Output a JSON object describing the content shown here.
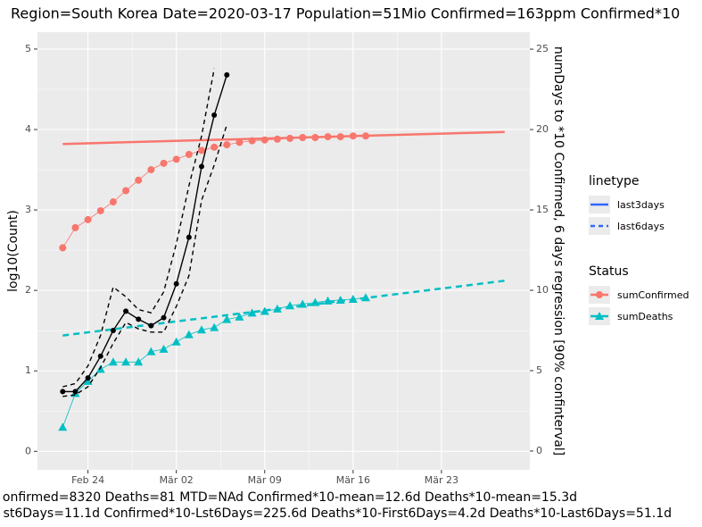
{
  "chart_data": {
    "type": "line",
    "title": "Region=South Korea Date=2020-03-17  Population=51Mio Confirmed=163ppm  Confirmed*10",
    "y_label": "log10(Count)",
    "y2_label": "numDays to *10 Confirmed, 6 days regression [90% confinterval]",
    "caption": [
      "onfirmed=8320 Deaths=81  MTD=NAd   Confirmed*10-mean=12.6d  Deaths*10-mean=15.3d",
      "st6Days=11.1d  Confirmed*10-Lst6Days=225.6d    Deaths*10-First6Days=4.2d  Deaths*10-Last6Days=51.1d"
    ],
    "x": [
      "2020-02-22",
      "2020-02-23",
      "2020-02-24",
      "2020-02-25",
      "2020-02-26",
      "2020-02-27",
      "2020-02-28",
      "2020-02-29",
      "2020-03-01",
      "2020-03-02",
      "2020-03-03",
      "2020-03-04",
      "2020-03-05",
      "2020-03-06",
      "2020-03-07",
      "2020-03-08",
      "2020-03-09",
      "2020-03-10",
      "2020-03-11",
      "2020-03-12",
      "2020-03-13",
      "2020-03-14",
      "2020-03-15",
      "2020-03-16",
      "2020-03-17",
      "2020-03-18"
    ],
    "xlim": [
      "2020-02-20",
      "2020-03-30"
    ],
    "xticks": [
      {
        "value": "2020-02-24",
        "label": "Feb 24"
      },
      {
        "value": "2020-03-02",
        "label": "Mär 02"
      },
      {
        "value": "2020-03-09",
        "label": "Mär 09"
      },
      {
        "value": "2020-03-16",
        "label": "Mär 16"
      },
      {
        "value": "2020-03-23",
        "label": "Mär 23"
      }
    ],
    "ylim": [
      -0.23,
      5.21
    ],
    "yticks": [
      0,
      1,
      2,
      3,
      4,
      5
    ],
    "y2lim": [
      -1.17,
      26.06
    ],
    "y2ticks": [
      0,
      5,
      10,
      15,
      20,
      25
    ],
    "grid": true,
    "status_legend_title": "Status",
    "series": [
      {
        "name": "sumConfirmed",
        "color": "#F8766D",
        "marker": "circle",
        "values": [
          2.53,
          2.78,
          2.88,
          2.99,
          3.1,
          3.24,
          3.37,
          3.5,
          3.58,
          3.63,
          3.69,
          3.74,
          3.78,
          3.81,
          3.84,
          3.86,
          3.87,
          3.88,
          3.89,
          3.9,
          3.9,
          3.91,
          3.91,
          3.92,
          3.92,
          null
        ]
      },
      {
        "name": "sumDeaths",
        "color": "#00BFC4",
        "marker": "triangle",
        "values": [
          0.3,
          0.72,
          0.87,
          1.02,
          1.11,
          1.11,
          1.11,
          1.24,
          1.27,
          1.36,
          1.45,
          1.51,
          1.54,
          1.64,
          1.67,
          1.72,
          1.74,
          1.77,
          1.81,
          1.83,
          1.85,
          1.87,
          1.88,
          1.89,
          1.91,
          null
        ]
      }
    ],
    "interval": {
      "axis": "y2",
      "color": "#000000",
      "values": [
        3.7,
        3.7,
        4.55,
        5.9,
        7.5,
        8.7,
        8.2,
        7.8,
        8.3,
        10.4,
        13.3,
        17.7,
        20.9,
        23.4,
        null,
        null,
        null,
        null,
        null,
        null,
        null,
        null,
        null,
        null,
        null,
        null
      ],
      "upper": [
        4.0,
        4.2,
        5.3,
        7.2,
        10.2,
        9.6,
        8.8,
        8.6,
        9.9,
        12.9,
        16.5,
        19.6,
        23.8,
        null,
        null,
        null,
        null,
        null,
        null,
        null,
        null,
        null,
        null,
        null,
        null,
        null
      ],
      "lower": [
        3.4,
        3.5,
        4.0,
        5.2,
        6.7,
        8.0,
        7.6,
        7.4,
        7.4,
        9.0,
        10.9,
        15.6,
        17.8,
        20.3,
        null,
        null,
        null,
        null,
        null,
        null,
        null,
        null,
        null,
        null,
        null,
        null
      ]
    },
    "linetype_legend": {
      "title": "linetype",
      "color": "#3366FF",
      "entries": [
        {
          "name": "last3days",
          "dash": false
        },
        {
          "name": "last6days",
          "dash": true
        }
      ]
    },
    "regressions": [
      {
        "linetype": "last3days",
        "dash": false,
        "color": "#F8766D",
        "x": [
          "2020-02-22",
          "2020-03-28"
        ],
        "values": [
          3.82,
          3.97
        ]
      },
      {
        "linetype": "last6days",
        "dash": true,
        "color": "#00BFC4",
        "x": [
          "2020-02-22",
          "2020-03-28"
        ],
        "values": [
          1.44,
          2.12
        ]
      }
    ]
  }
}
